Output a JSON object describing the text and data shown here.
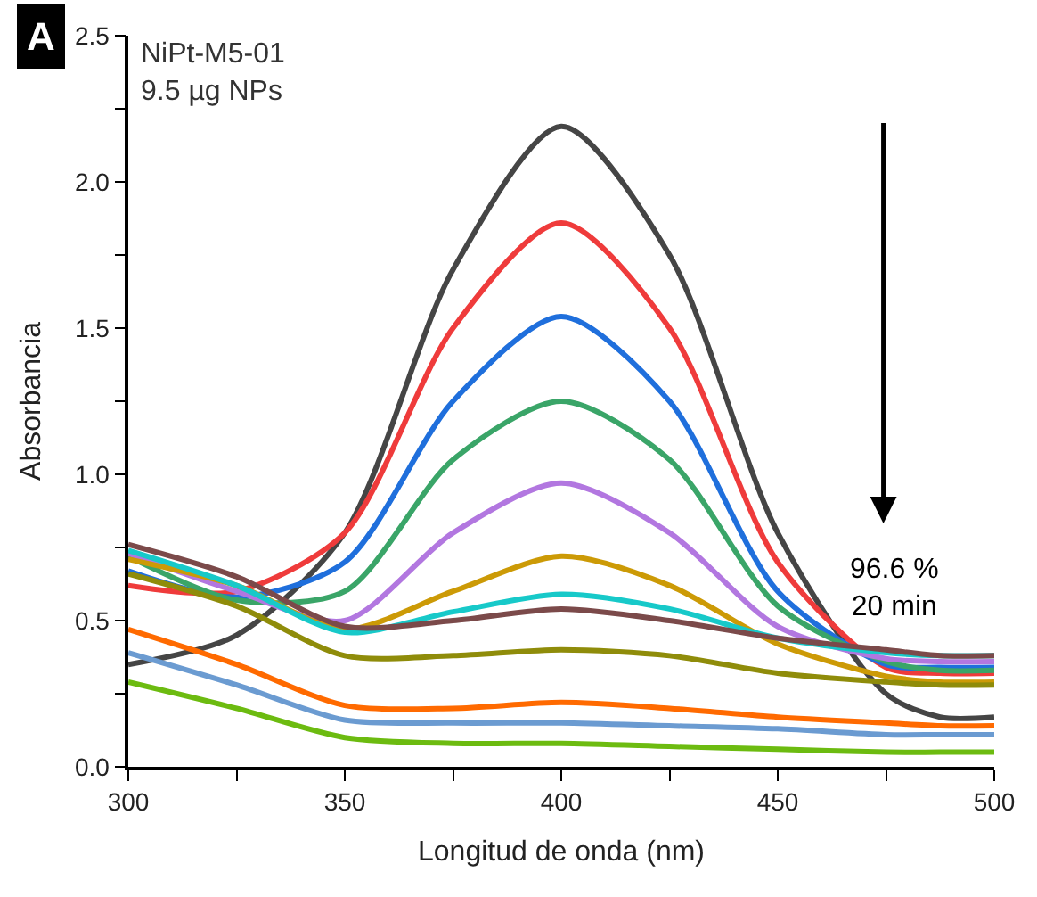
{
  "chart_data": {
    "type": "line",
    "xlabel": "Longitud de onda (nm)",
    "ylabel": "Absorbancia",
    "x": [
      300,
      325,
      350,
      375,
      400,
      425,
      450,
      475,
      487.5,
      500
    ],
    "series": [
      {
        "color": "#454545",
        "values": [
          0.35,
          0.45,
          0.8,
          1.7,
          2.19,
          1.75,
          0.8,
          0.25,
          0.17,
          0.17
        ]
      },
      {
        "color": "#ef3b3b",
        "values": [
          0.62,
          0.6,
          0.8,
          1.5,
          1.86,
          1.5,
          0.7,
          0.34,
          0.32,
          0.32
        ]
      },
      {
        "color": "#1f6fdc",
        "values": [
          0.67,
          0.58,
          0.7,
          1.25,
          1.54,
          1.25,
          0.6,
          0.35,
          0.34,
          0.34
        ]
      },
      {
        "color": "#3aa568",
        "values": [
          0.72,
          0.57,
          0.6,
          1.05,
          1.25,
          1.05,
          0.55,
          0.36,
          0.33,
          0.33
        ]
      },
      {
        "color": "#b277e0",
        "values": [
          0.73,
          0.6,
          0.5,
          0.8,
          0.97,
          0.8,
          0.48,
          0.37,
          0.36,
          0.36
        ]
      },
      {
        "color": "#cc9a06",
        "values": [
          0.71,
          0.62,
          0.47,
          0.6,
          0.72,
          0.62,
          0.42,
          0.31,
          0.29,
          0.29
        ]
      },
      {
        "color": "#17c9c9",
        "values": [
          0.74,
          0.62,
          0.46,
          0.53,
          0.59,
          0.54,
          0.44,
          0.39,
          0.38,
          0.38
        ]
      },
      {
        "color": "#7b4a4a",
        "values": [
          0.76,
          0.65,
          0.48,
          0.5,
          0.54,
          0.5,
          0.44,
          0.4,
          0.38,
          0.38
        ]
      },
      {
        "color": "#8f8c0a",
        "values": [
          0.66,
          0.55,
          0.38,
          0.38,
          0.4,
          0.38,
          0.32,
          0.29,
          0.28,
          0.28
        ]
      },
      {
        "color": "#ff6a00",
        "values": [
          0.47,
          0.35,
          0.21,
          0.2,
          0.22,
          0.2,
          0.17,
          0.15,
          0.14,
          0.14
        ]
      },
      {
        "color": "#6b9bd1",
        "values": [
          0.39,
          0.28,
          0.16,
          0.15,
          0.15,
          0.14,
          0.13,
          0.11,
          0.11,
          0.11
        ]
      },
      {
        "color": "#6cbb10",
        "values": [
          0.29,
          0.2,
          0.1,
          0.08,
          0.08,
          0.07,
          0.06,
          0.05,
          0.05,
          0.05
        ]
      }
    ],
    "xlim": [
      300,
      500
    ],
    "ylim": [
      0,
      2.5
    ],
    "xticks": [
      300,
      {
        "value": 325,
        "label": null
      },
      350,
      {
        "value": 375,
        "label": null
      },
      400,
      {
        "value": 425,
        "label": null
      },
      450,
      {
        "value": 475,
        "label": null
      },
      500
    ],
    "yticks": [
      {
        "value": 0,
        "label": "0.0"
      },
      {
        "value": 0.25,
        "label": null
      },
      {
        "value": 0.5,
        "label": "0.5"
      },
      {
        "value": 0.75,
        "label": null
      },
      {
        "value": 1,
        "label": "1.0"
      },
      {
        "value": 1.25,
        "label": null
      },
      {
        "value": 1.5,
        "label": "1.5"
      },
      {
        "value": 1.75,
        "label": null
      },
      {
        "value": 2,
        "label": "2.0"
      },
      {
        "value": 2.25,
        "label": null
      },
      {
        "value": 2.5,
        "label": "2.5"
      }
    ],
    "annotations": [
      "A",
      "NiPt-M5-01",
      "9.5 µg NPs",
      "96.6 %\n20 min"
    ],
    "marker": "none",
    "line_style": "solid"
  }
}
